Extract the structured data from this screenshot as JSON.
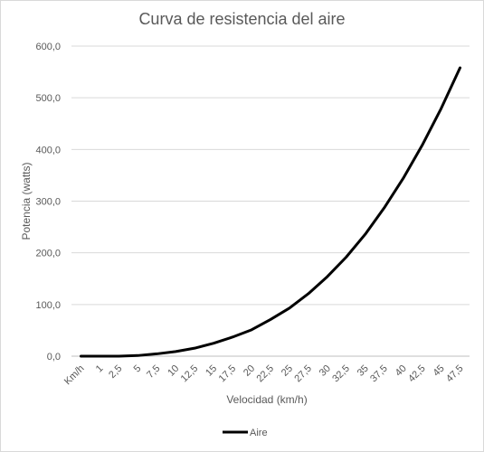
{
  "chart_data": {
    "type": "line",
    "title": "Curva de resistencia del aire",
    "xlabel": "Velocidad (km/h)",
    "ylabel": "Potencia (watts)",
    "categories": [
      "Km/h",
      "1",
      "2,5",
      "5",
      "7,5",
      "10",
      "12,5",
      "15",
      "17,5",
      "20",
      "22,5",
      "25",
      "27,5",
      "30",
      "32,5",
      "35",
      "37,5",
      "40",
      "42,5",
      "45",
      "47,5"
    ],
    "series": [
      {
        "name": "Aire",
        "color": "#000000",
        "values": [
          0,
          0,
          0.1,
          1.2,
          4.5,
          9,
          15.5,
          25,
          37,
          51,
          71,
          93,
          121,
          154,
          192,
          236,
          287,
          344,
          408,
          479,
          558
        ]
      }
    ],
    "y_ticks": [
      "0,0",
      "100,0",
      "200,0",
      "300,0",
      "400,0",
      "500,0",
      "600,0"
    ],
    "ylim": [
      0,
      600
    ],
    "grid": true,
    "legend_position": "bottom"
  }
}
